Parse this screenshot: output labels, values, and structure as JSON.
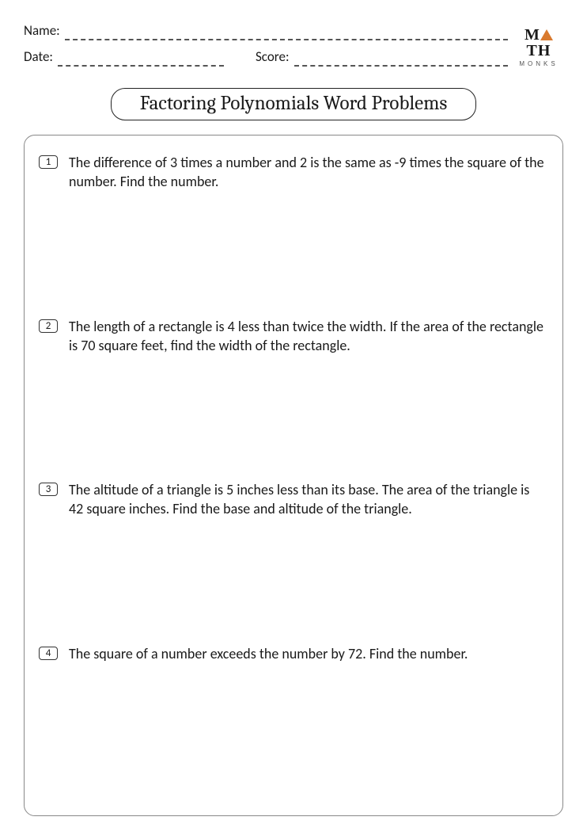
{
  "header": {
    "name_label": "Name:",
    "date_label": "Date:",
    "score_label": "Score:"
  },
  "logo": {
    "line1_left": "M",
    "line1_right": "TH",
    "line2": "MONKS",
    "triangle_color": "#d97a2e"
  },
  "title": "Factoring Polynomials Word Problems",
  "problems": [
    {
      "num": "1",
      "text": "The difference of 3 times a number and 2 is the same as -9 times the square of the number. Find the number."
    },
    {
      "num": "2",
      "text": "The length of a rectangle is 4 less than twice the width. If the area of the rectangle is 70 square feet, find the width of the rectangle."
    },
    {
      "num": "3",
      "text": "The altitude of a triangle is 5 inches less than its base. The area of the triangle is 42 square inches. Find the base and altitude of the triangle."
    },
    {
      "num": "4",
      "text": "The square of a number exceeds the number by 72. Find the number."
    }
  ],
  "colors": {
    "text": "#1a1a1a",
    "border": "#888888",
    "dash": "#555555",
    "background": "#ffffff"
  },
  "typography": {
    "body_fontsize": 18,
    "title_fontsize": 25,
    "label_fontsize": 17,
    "num_fontsize": 13
  }
}
